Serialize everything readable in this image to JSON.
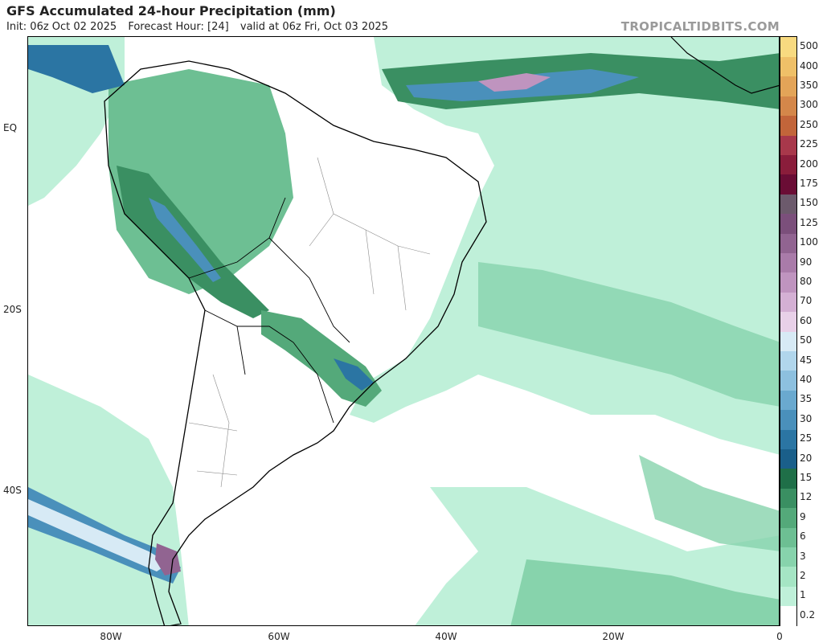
{
  "header": {
    "title": "GFS Accumulated 24-hour Precipitation (mm)",
    "init": "Init: 06z Oct 02 2025",
    "forecast_hour": "Forecast Hour: [24]",
    "valid": "valid at 06z Fri, Oct 03 2025",
    "brand": "TROPICALTIDBITS.COM"
  },
  "map": {
    "lat_labels": [
      "EQ",
      "20S",
      "40S"
    ],
    "lon_labels": [
      "80W",
      "60W",
      "40W",
      "20W",
      "0"
    ],
    "region": "South America"
  },
  "legend": {
    "levels": [
      "0.2",
      "1",
      "2",
      "3",
      "6",
      "9",
      "12",
      "15",
      "20",
      "25",
      "30",
      "35",
      "40",
      "45",
      "50",
      "60",
      "70",
      "80",
      "90",
      "100",
      "125",
      "150",
      "175",
      "200",
      "225",
      "250",
      "300",
      "350",
      "400",
      "500"
    ],
    "colors": [
      "#ffffff",
      "#bff0d9",
      "#a5e5c4",
      "#87d3ac",
      "#6dbf93",
      "#54a97a",
      "#3a8f62",
      "#1f6f48",
      "#1a5f8a",
      "#2b75a3",
      "#4a90bb",
      "#6aa9cf",
      "#8dc0df",
      "#b1d6ec",
      "#d7eaf5",
      "#e8d0e8",
      "#d4b0d4",
      "#bf94bf",
      "#a97ba9",
      "#916491",
      "#7b4f7b",
      "#6c5a6c",
      "#6a0d35",
      "#8a1d3b",
      "#a8384b",
      "#c2653a",
      "#d4874a",
      "#e3a458",
      "#efc068",
      "#f8da80"
    ]
  }
}
